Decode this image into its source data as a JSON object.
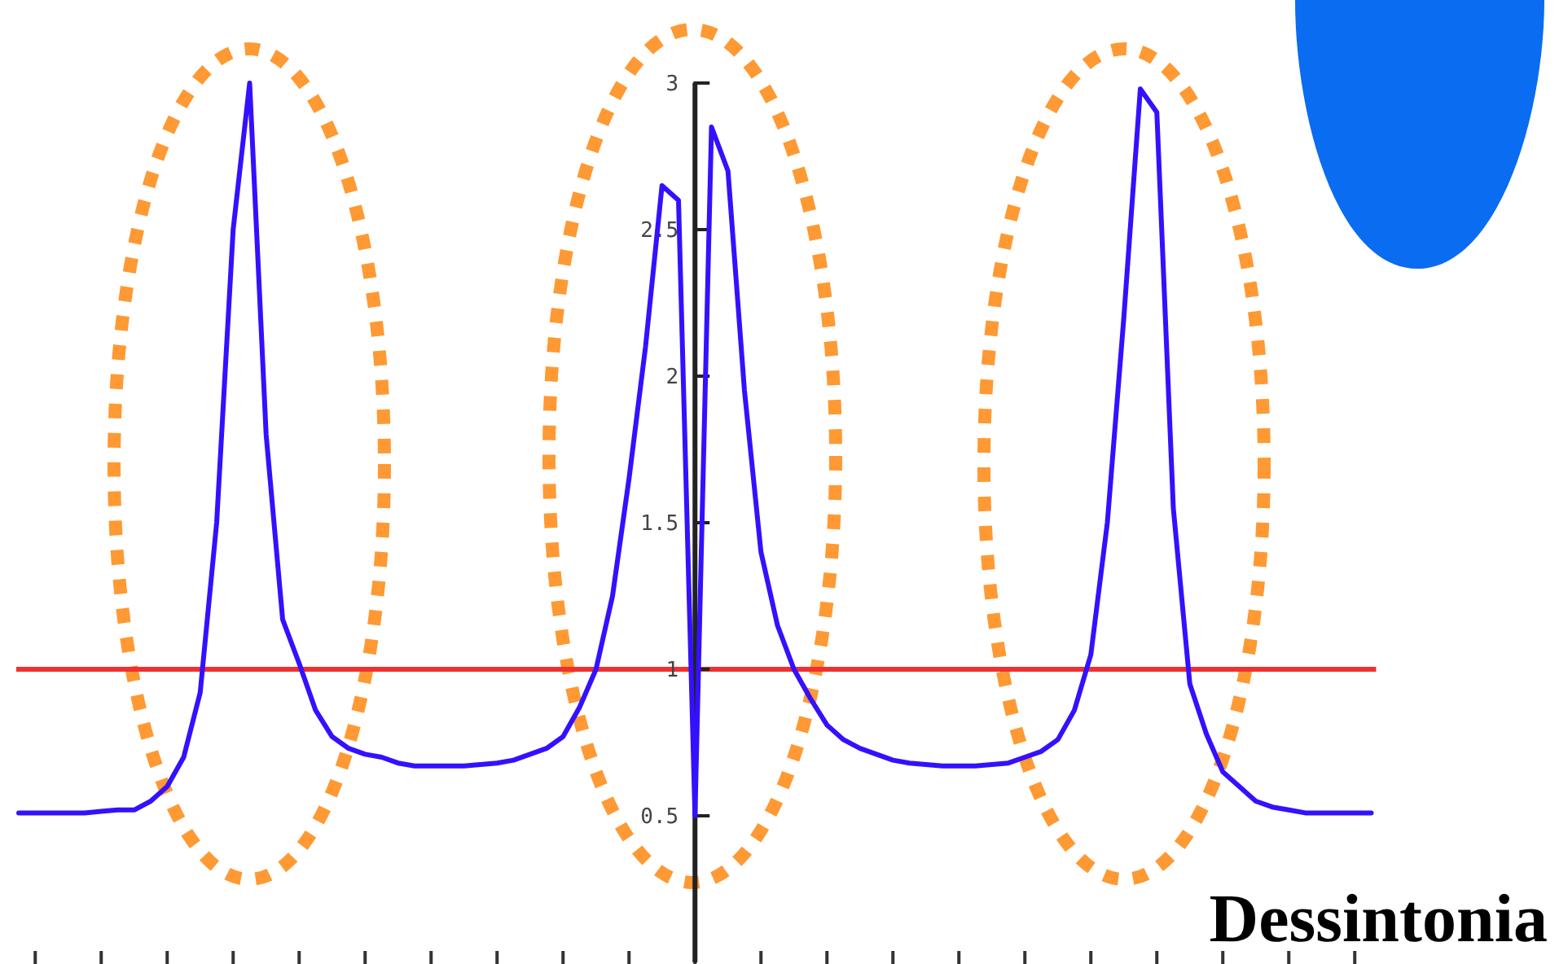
{
  "chart_data": {
    "type": "line",
    "categories": [
      null,
      null,
      null,
      null,
      null,
      null,
      null,
      null,
      null,
      null,
      null,
      null,
      null,
      null,
      null,
      null,
      null,
      null,
      null,
      null,
      null,
      null,
      null,
      null,
      null,
      null,
      null,
      null,
      null,
      null,
      null,
      null,
      null,
      null,
      null,
      null,
      null,
      null,
      null,
      null,
      null,
      null,
      null,
      null,
      null,
      null,
      null,
      null,
      null,
      null,
      null,
      null,
      null,
      null,
      null,
      null,
      null,
      null,
      null,
      null,
      null,
      null,
      null,
      null,
      null,
      null,
      null,
      null,
      null,
      null,
      null,
      null,
      null,
      null,
      null,
      null,
      null,
      null,
      null,
      null,
      null,
      null,
      null
    ],
    "series": [
      {
        "color": "#3311ff",
        "values": [
          0.51,
          0.51,
          0.51,
          0.51,
          0.51,
          0.515,
          0.52,
          0.52,
          0.55,
          0.6,
          0.7,
          0.92,
          1.5,
          2.5,
          3.0,
          1.8,
          1.17,
          1.02,
          0.86,
          0.77,
          0.73,
          0.71,
          0.7,
          0.68,
          0.67,
          0.67,
          0.67,
          0.67,
          0.675,
          0.68,
          0.69,
          0.71,
          0.73,
          0.77,
          0.87,
          1.0,
          1.25,
          1.65,
          2.1,
          2.65,
          2.6,
          0.5,
          2.85,
          2.7,
          1.95,
          1.4,
          1.15,
          1.0,
          0.9,
          0.81,
          0.76,
          0.73,
          0.71,
          0.69,
          0.68,
          0.675,
          0.67,
          0.67,
          0.67,
          0.675,
          0.68,
          0.7,
          0.72,
          0.76,
          0.86,
          1.05,
          1.5,
          2.2,
          2.98,
          2.9,
          1.55,
          0.95,
          0.78,
          0.65,
          0.6,
          0.55,
          0.53,
          0.52,
          0.51,
          0.51,
          0.51,
          0.51,
          0.51
        ]
      }
    ],
    "ylim": [
      0,
      3
    ],
    "yticks": [
      0.5,
      1,
      1.5,
      2,
      2.5,
      3
    ],
    "ref_lines": [
      {
        "axis": "y",
        "value": 1,
        "color": "#f03030"
      }
    ],
    "tick_labels": "y",
    "annotations": [
      "Dessintonia"
    ]
  }
}
